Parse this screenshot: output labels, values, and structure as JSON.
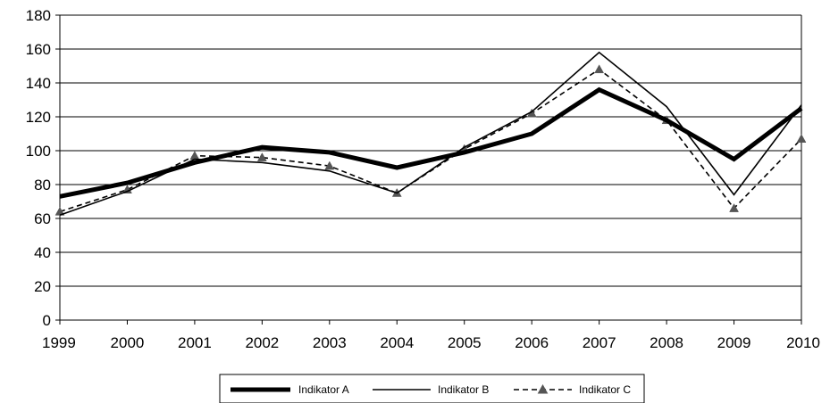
{
  "chart_data": {
    "type": "line",
    "title": "",
    "xlabel": "",
    "ylabel": "",
    "categories": [
      "1999",
      "2000",
      "2001",
      "2002",
      "2003",
      "2004",
      "2005",
      "2006",
      "2007",
      "2008",
      "2009",
      "2010"
    ],
    "ylim": [
      0,
      180
    ],
    "yticks": [
      "0",
      "20",
      "40",
      "60",
      "80",
      "100",
      "120",
      "140",
      "160",
      "180"
    ],
    "grid": true,
    "legend_position": "bottom",
    "series": [
      {
        "name": "Indikator A",
        "style": "thick-solid",
        "color": "#000000",
        "values": [
          73,
          81,
          93,
          102,
          99,
          90,
          99,
          110,
          136,
          118,
          95,
          125
        ]
      },
      {
        "name": "Indikator B",
        "style": "thin-solid",
        "color": "#000000",
        "values": [
          62,
          76,
          95,
          93,
          88,
          75,
          102,
          123,
          158,
          126,
          74,
          127
        ]
      },
      {
        "name": "Indikator C",
        "style": "dashed-triangle",
        "color": "#000000",
        "marker_color": "#555555",
        "values": [
          64,
          77,
          97,
          96,
          91,
          75,
          101,
          122,
          148,
          118,
          66,
          107
        ]
      }
    ]
  }
}
